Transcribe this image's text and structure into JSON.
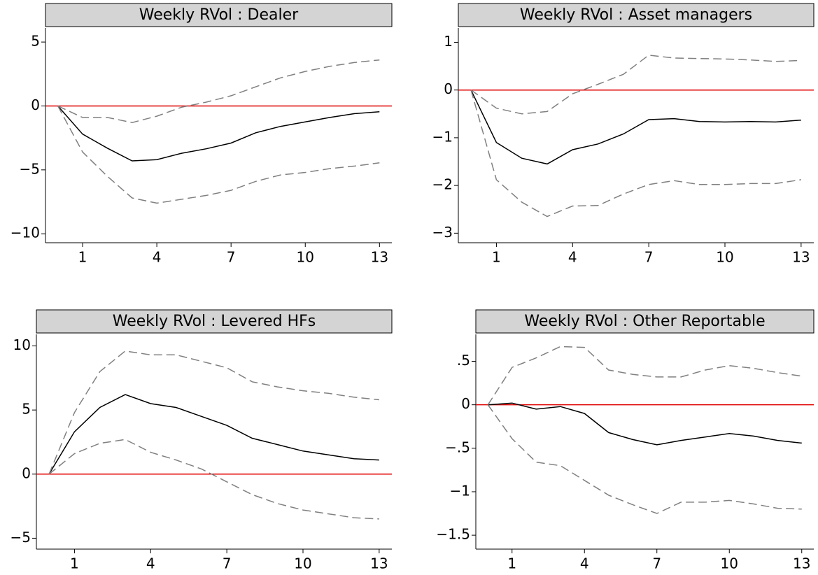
{
  "chart_data": [
    {
      "type": "line",
      "title": "Weekly RVol : Dealer",
      "x": [
        0,
        1,
        2,
        3,
        4,
        5,
        6,
        7,
        8,
        9,
        10,
        11,
        12,
        13
      ],
      "series": [
        {
          "color": "#000000",
          "dash": false,
          "values": [
            0,
            -2.2,
            -3.3,
            -4.3,
            -4.2,
            -3.7,
            -3.35,
            -2.9,
            -2.1,
            -1.6,
            -1.25,
            -0.9,
            -0.6,
            -0.45
          ]
        },
        {
          "color": "#808080",
          "dash": true,
          "values": [
            0,
            -0.9,
            -0.9,
            -1.3,
            -0.8,
            -0.1,
            0.3,
            0.8,
            1.5,
            2.2,
            2.7,
            3.1,
            3.4,
            3.6
          ]
        },
        {
          "color": "#808080",
          "dash": true,
          "values": [
            0,
            -3.6,
            -5.5,
            -7.2,
            -7.6,
            -7.3,
            -7.0,
            -6.6,
            -5.9,
            -5.4,
            -5.2,
            -4.9,
            -4.7,
            -4.45
          ]
        }
      ],
      "hline": 0,
      "hline_color": "#e00000",
      "xlim": [
        -0.5,
        13.5
      ],
      "xticks": [
        1,
        4,
        7,
        10,
        13
      ],
      "ylim": [
        -10.7,
        6.1
      ],
      "yticks": [
        5,
        0,
        {
          "value": -5,
          "label": "−5"
        },
        {
          "value": -10,
          "label": "−10"
        }
      ]
    },
    {
      "type": "line",
      "title": "Weekly RVol : Asset managers",
      "x": [
        0,
        1,
        2,
        3,
        4,
        5,
        6,
        7,
        8,
        9,
        10,
        11,
        12,
        13
      ],
      "series": [
        {
          "color": "#000000",
          "dash": false,
          "values": [
            0,
            -1.1,
            -1.43,
            -1.55,
            -1.25,
            -1.13,
            -0.92,
            -0.62,
            -0.6,
            -0.66,
            -0.67,
            -0.66,
            -0.67,
            -0.63
          ]
        },
        {
          "color": "#808080",
          "dash": true,
          "values": [
            0,
            -0.38,
            -0.5,
            -0.45,
            -0.08,
            0.12,
            0.33,
            0.73,
            0.67,
            0.66,
            0.65,
            0.63,
            0.6,
            0.62
          ]
        },
        {
          "color": "#808080",
          "dash": true,
          "values": [
            0,
            -1.88,
            -2.35,
            -2.65,
            -2.43,
            -2.42,
            -2.18,
            -1.98,
            -1.9,
            -1.98,
            -1.98,
            -1.96,
            -1.96,
            -1.88
          ]
        }
      ],
      "hline": 0,
      "hline_color": "#e00000",
      "xlim": [
        -0.5,
        13.5
      ],
      "xticks": [
        1,
        4,
        7,
        10,
        13
      ],
      "ylim": [
        -3.2,
        1.3
      ],
      "yticks": [
        1,
        0,
        {
          "value": -1,
          "label": "−1"
        },
        {
          "value": -2,
          "label": "−2"
        },
        {
          "value": -3,
          "label": "−3"
        }
      ]
    },
    {
      "type": "line",
      "title": "Weekly RVol : Levered HFs",
      "x": [
        0,
        1,
        2,
        3,
        4,
        5,
        6,
        7,
        8,
        9,
        10,
        11,
        12,
        13
      ],
      "series": [
        {
          "color": "#000000",
          "dash": false,
          "values": [
            0,
            3.3,
            5.2,
            6.2,
            5.5,
            5.2,
            4.5,
            3.8,
            2.8,
            2.3,
            1.8,
            1.5,
            1.2,
            1.1
          ]
        },
        {
          "color": "#808080",
          "dash": true,
          "values": [
            0,
            4.8,
            8.0,
            9.6,
            9.3,
            9.3,
            8.8,
            8.3,
            7.2,
            6.8,
            6.5,
            6.3,
            6.0,
            5.8
          ]
        },
        {
          "color": "#808080",
          "dash": true,
          "values": [
            0,
            1.6,
            2.4,
            2.7,
            1.7,
            1.1,
            0.4,
            -0.6,
            -1.6,
            -2.3,
            -2.8,
            -3.1,
            -3.4,
            -3.5
          ]
        }
      ],
      "hline": 0,
      "hline_color": "#e00000",
      "xlim": [
        -0.5,
        13.5
      ],
      "xticks": [
        1,
        4,
        7,
        10,
        13
      ],
      "ylim": [
        -5.85,
        10.9
      ],
      "yticks": [
        10,
        5,
        0,
        {
          "value": -5,
          "label": "−5"
        }
      ]
    },
    {
      "type": "line",
      "title": "Weekly RVol : Other Reportable",
      "x": [
        0,
        1,
        2,
        3,
        4,
        5,
        6,
        7,
        8,
        9,
        10,
        11,
        12,
        13
      ],
      "series": [
        {
          "color": "#000000",
          "dash": false,
          "values": [
            0,
            0.02,
            -0.05,
            -0.02,
            -0.1,
            -0.32,
            -0.4,
            -0.46,
            -0.41,
            -0.37,
            -0.33,
            -0.36,
            -0.41,
            -0.44
          ]
        },
        {
          "color": "#808080",
          "dash": true,
          "values": [
            0,
            0.43,
            0.54,
            0.67,
            0.66,
            0.4,
            0.35,
            0.32,
            0.32,
            0.4,
            0.45,
            0.42,
            0.37,
            0.33
          ]
        },
        {
          "color": "#808080",
          "dash": true,
          "values": [
            0,
            -0.39,
            -0.66,
            -0.7,
            -0.87,
            -1.04,
            -1.15,
            -1.25,
            -1.12,
            -1.12,
            -1.1,
            -1.14,
            -1.19,
            -1.2
          ]
        }
      ],
      "hline": 0,
      "hline_color": "#e00000",
      "xlim": [
        -0.5,
        13.5
      ],
      "xticks": [
        1,
        4,
        7,
        10,
        13
      ],
      "ylim": [
        -1.66,
        0.81
      ],
      "yticks": [
        {
          "value": 0.5,
          "label": ".5"
        },
        0,
        {
          "value": -0.5,
          "label": "−.5"
        },
        {
          "value": -1,
          "label": "−1"
        },
        {
          "value": -1.5,
          "label": "−1.5"
        }
      ]
    }
  ]
}
